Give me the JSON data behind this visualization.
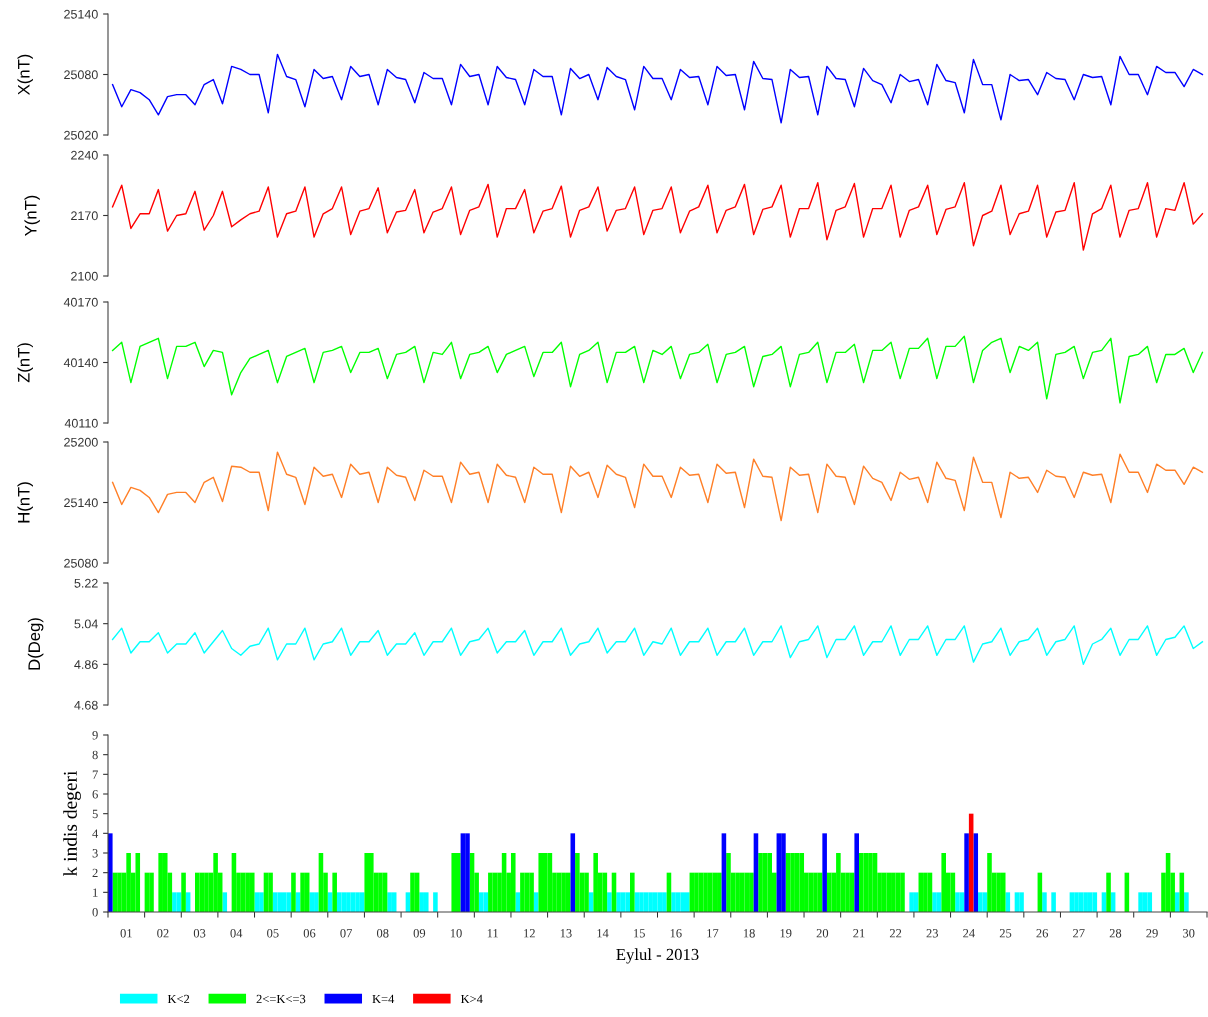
{
  "chart_data": [
    {
      "type": "line",
      "ylabel": "X(nT)",
      "tick_labels": "y",
      "ylim": [
        25020,
        25140
      ],
      "yticks": [
        25020,
        25080,
        25140
      ],
      "grid": false,
      "categories": [
        null,
        null,
        null,
        null,
        null,
        null,
        null,
        null,
        null,
        null,
        null,
        null,
        null,
        null,
        null,
        null,
        null,
        null,
        null,
        null,
        null,
        null,
        null,
        null,
        null,
        null,
        null,
        null,
        null,
        null,
        null,
        null,
        null,
        null,
        null,
        null,
        null,
        null,
        null,
        null,
        null,
        null,
        null,
        null,
        null,
        null,
        null,
        null,
        null,
        null,
        null,
        null,
        null,
        null,
        null,
        null,
        null,
        null,
        null,
        null,
        null,
        null,
        null,
        null,
        null,
        null,
        null,
        null,
        null,
        null,
        null,
        null,
        null,
        null,
        null,
        null,
        null,
        null,
        null,
        null,
        null,
        null,
        null,
        null,
        null,
        null,
        null,
        null,
        null,
        null,
        null,
        null,
        null,
        null,
        null,
        null,
        null,
        null,
        null,
        null,
        null,
        null,
        null,
        null,
        null,
        null,
        null,
        null,
        null,
        null,
        null,
        null,
        null,
        null,
        null,
        null,
        null,
        null,
        null,
        null
      ],
      "series": [
        {
          "color": "#0000ff",
          "values": [
            25070,
            25048,
            25065,
            25062,
            25055,
            25040,
            25058,
            25060,
            25060,
            25050,
            25070,
            25075,
            25051,
            25088,
            25085,
            25080,
            25080,
            25042,
            25100,
            25078,
            25075,
            25048,
            25085,
            25076,
            25078,
            25055,
            25088,
            25078,
            25080,
            25050,
            25085,
            25077,
            25075,
            25052,
            25082,
            25076,
            25076,
            25050,
            25090,
            25078,
            25080,
            25050,
            25088,
            25077,
            25075,
            25050,
            25085,
            25078,
            25078,
            25040,
            25086,
            25076,
            25080,
            25055,
            25087,
            25078,
            25075,
            25045,
            25088,
            25076,
            25076,
            25055,
            25085,
            25077,
            25078,
            25050,
            25088,
            25079,
            25080,
            25045,
            25093,
            25076,
            25075,
            25032,
            25085,
            25077,
            25078,
            25040,
            25088,
            25076,
            25075,
            25048,
            25086,
            25074,
            25070,
            25052,
            25080,
            25073,
            25075,
            25050,
            25090,
            25074,
            25072,
            25042,
            25095,
            25070,
            25070,
            25035,
            25080,
            25074,
            25075,
            25060,
            25082,
            25076,
            25075,
            25055,
            25080,
            25077,
            25078,
            25050,
            25098,
            25080,
            25080,
            25060,
            25088,
            25082,
            25082,
            25068,
            25085,
            25080
          ]
        }
      ]
    },
    {
      "type": "line",
      "ylabel": "Y(nT)",
      "tick_labels": "y",
      "ylim": [
        2100,
        2240
      ],
      "yticks": [
        2100,
        2170,
        2240
      ],
      "grid": false,
      "categories": [
        null,
        null,
        null,
        null,
        null,
        null,
        null,
        null,
        null,
        null,
        null,
        null,
        null,
        null,
        null,
        null,
        null,
        null,
        null,
        null,
        null,
        null,
        null,
        null,
        null,
        null,
        null,
        null,
        null,
        null,
        null,
        null,
        null,
        null,
        null,
        null,
        null,
        null,
        null,
        null,
        null,
        null,
        null,
        null,
        null,
        null,
        null,
        null,
        null,
        null,
        null,
        null,
        null,
        null,
        null,
        null,
        null,
        null,
        null,
        null,
        null,
        null,
        null,
        null,
        null,
        null,
        null,
        null,
        null,
        null,
        null,
        null,
        null,
        null,
        null,
        null,
        null,
        null,
        null,
        null,
        null,
        null,
        null,
        null,
        null,
        null,
        null,
        null,
        null,
        null,
        null,
        null,
        null,
        null,
        null,
        null,
        null,
        null,
        null,
        null,
        null,
        null,
        null,
        null,
        null,
        null,
        null,
        null,
        null,
        null,
        null,
        null,
        null,
        null,
        null,
        null,
        null,
        null,
        null,
        null
      ],
      "series": [
        {
          "color": "#ff0000",
          "values": [
            2180,
            2205,
            2155,
            2172,
            2172,
            2200,
            2152,
            2170,
            2172,
            2198,
            2153,
            2170,
            2198,
            2157,
            2165,
            2172,
            2175,
            2203,
            2145,
            2172,
            2175,
            2203,
            2145,
            2172,
            2178,
            2203,
            2148,
            2175,
            2178,
            2202,
            2150,
            2174,
            2176,
            2200,
            2150,
            2174,
            2178,
            2203,
            2148,
            2176,
            2180,
            2206,
            2145,
            2178,
            2178,
            2200,
            2150,
            2175,
            2178,
            2204,
            2145,
            2176,
            2180,
            2203,
            2152,
            2176,
            2178,
            2203,
            2148,
            2176,
            2178,
            2203,
            2150,
            2175,
            2180,
            2205,
            2150,
            2176,
            2180,
            2206,
            2148,
            2177,
            2180,
            2205,
            2145,
            2178,
            2178,
            2208,
            2142,
            2176,
            2180,
            2207,
            2145,
            2178,
            2178,
            2205,
            2145,
            2176,
            2180,
            2205,
            2148,
            2177,
            2180,
            2208,
            2135,
            2170,
            2175,
            2205,
            2148,
            2172,
            2175,
            2205,
            2145,
            2174,
            2176,
            2208,
            2130,
            2172,
            2178,
            2205,
            2145,
            2176,
            2178,
            2208,
            2145,
            2178,
            2176,
            2208,
            2160,
            2172
          ]
        }
      ]
    },
    {
      "type": "line",
      "ylabel": "Z(nT)",
      "tick_labels": "y",
      "ylim": [
        40110,
        40170
      ],
      "yticks": [
        40110,
        40140,
        40170
      ],
      "grid": false,
      "categories": [
        null,
        null,
        null,
        null,
        null,
        null,
        null,
        null,
        null,
        null,
        null,
        null,
        null,
        null,
        null,
        null,
        null,
        null,
        null,
        null,
        null,
        null,
        null,
        null,
        null,
        null,
        null,
        null,
        null,
        null,
        null,
        null,
        null,
        null,
        null,
        null,
        null,
        null,
        null,
        null,
        null,
        null,
        null,
        null,
        null,
        null,
        null,
        null,
        null,
        null,
        null,
        null,
        null,
        null,
        null,
        null,
        null,
        null,
        null,
        null,
        null,
        null,
        null,
        null,
        null,
        null,
        null,
        null,
        null,
        null,
        null,
        null,
        null,
        null,
        null,
        null,
        null,
        null,
        null,
        null,
        null,
        null,
        null,
        null,
        null,
        null,
        null,
        null,
        null,
        null,
        null,
        null,
        null,
        null,
        null,
        null,
        null,
        null,
        null,
        null,
        null,
        null,
        null,
        null,
        null,
        null,
        null,
        null,
        null,
        null,
        null,
        null,
        null,
        null,
        null,
        null,
        null,
        null,
        null,
        null
      ],
      "series": [
        {
          "color": "#00ff00",
          "values": [
            40146,
            40150,
            40130,
            40148,
            40150,
            40152,
            40132,
            40148,
            40148,
            40150,
            40138,
            40146,
            40145,
            40124,
            40135,
            40142,
            40144,
            40146,
            40130,
            40143,
            40145,
            40147,
            40130,
            40145,
            40146,
            40148,
            40135,
            40145,
            40145,
            40147,
            40132,
            40144,
            40145,
            40148,
            40130,
            40145,
            40144,
            40150,
            40132,
            40144,
            40145,
            40148,
            40135,
            40144,
            40146,
            40148,
            40133,
            40145,
            40145,
            40150,
            40128,
            40144,
            40146,
            40150,
            40130,
            40145,
            40145,
            40148,
            40130,
            40146,
            40144,
            40148,
            40132,
            40144,
            40145,
            40149,
            40130,
            40144,
            40145,
            40148,
            40128,
            40143,
            40144,
            40148,
            40128,
            40144,
            40145,
            40150,
            40130,
            40145,
            40145,
            40149,
            40130,
            40146,
            40146,
            40150,
            40132,
            40147,
            40147,
            40152,
            40132,
            40148,
            40148,
            40153,
            40130,
            40146,
            40150,
            40152,
            40135,
            40148,
            40146,
            40150,
            40122,
            40144,
            40145,
            40148,
            40132,
            40145,
            40146,
            40152,
            40120,
            40143,
            40144,
            40148,
            40130,
            40144,
            40144,
            40147,
            40135,
            40145
          ]
        }
      ]
    },
    {
      "type": "line",
      "ylabel": "H(nT)",
      "tick_labels": "y",
      "ylim": [
        25080,
        25200
      ],
      "yticks": [
        25080,
        25140,
        25200
      ],
      "grid": false,
      "categories": [
        null,
        null,
        null,
        null,
        null,
        null,
        null,
        null,
        null,
        null,
        null,
        null,
        null,
        null,
        null,
        null,
        null,
        null,
        null,
        null,
        null,
        null,
        null,
        null,
        null,
        null,
        null,
        null,
        null,
        null,
        null,
        null,
        null,
        null,
        null,
        null,
        null,
        null,
        null,
        null,
        null,
        null,
        null,
        null,
        null,
        null,
        null,
        null,
        null,
        null,
        null,
        null,
        null,
        null,
        null,
        null,
        null,
        null,
        null,
        null,
        null,
        null,
        null,
        null,
        null,
        null,
        null,
        null,
        null,
        null,
        null,
        null,
        null,
        null,
        null,
        null,
        null,
        null,
        null,
        null,
        null,
        null,
        null,
        null,
        null,
        null,
        null,
        null,
        null,
        null,
        null,
        null,
        null,
        null,
        null,
        null,
        null,
        null,
        null,
        null,
        null,
        null,
        null,
        null,
        null,
        null,
        null,
        null,
        null,
        null,
        null,
        null,
        null,
        null,
        null,
        null,
        null,
        null,
        null,
        null
      ],
      "series": [
        {
          "color": "#ff7f27",
          "values": [
            25160,
            25138,
            25155,
            25152,
            25145,
            25130,
            25148,
            25150,
            25150,
            25140,
            25160,
            25165,
            25141,
            25176,
            25175,
            25170,
            25170,
            25132,
            25190,
            25168,
            25165,
            25138,
            25175,
            25166,
            25168,
            25145,
            25178,
            25168,
            25170,
            25140,
            25175,
            25167,
            25165,
            25142,
            25172,
            25166,
            25166,
            25140,
            25180,
            25168,
            25170,
            25140,
            25178,
            25167,
            25165,
            25140,
            25175,
            25168,
            25168,
            25130,
            25176,
            25166,
            25170,
            25145,
            25177,
            25168,
            25165,
            25135,
            25178,
            25166,
            25166,
            25145,
            25175,
            25167,
            25168,
            25140,
            25178,
            25169,
            25170,
            25135,
            25183,
            25166,
            25165,
            25122,
            25175,
            25167,
            25168,
            25130,
            25178,
            25166,
            25165,
            25138,
            25176,
            25164,
            25160,
            25142,
            25170,
            25163,
            25165,
            25140,
            25180,
            25164,
            25162,
            25132,
            25185,
            25160,
            25160,
            25125,
            25170,
            25164,
            25165,
            25150,
            25172,
            25166,
            25165,
            25145,
            25170,
            25167,
            25168,
            25140,
            25188,
            25170,
            25170,
            25150,
            25178,
            25172,
            25172,
            25158,
            25175,
            25170
          ]
        }
      ]
    },
    {
      "type": "line",
      "ylabel": "D(Deg)",
      "tick_labels": "y",
      "ylim": [
        4.68,
        5.22
      ],
      "yticks": [
        4.68,
        4.86,
        5.04,
        5.22
      ],
      "grid": false,
      "categories": [
        null,
        null,
        null,
        null,
        null,
        null,
        null,
        null,
        null,
        null,
        null,
        null,
        null,
        null,
        null,
        null,
        null,
        null,
        null,
        null,
        null,
        null,
        null,
        null,
        null,
        null,
        null,
        null,
        null,
        null,
        null,
        null,
        null,
        null,
        null,
        null,
        null,
        null,
        null,
        null,
        null,
        null,
        null,
        null,
        null,
        null,
        null,
        null,
        null,
        null,
        null,
        null,
        null,
        null,
        null,
        null,
        null,
        null,
        null,
        null,
        null,
        null,
        null,
        null,
        null,
        null,
        null,
        null,
        null,
        null,
        null,
        null,
        null,
        null,
        null,
        null,
        null,
        null,
        null,
        null,
        null,
        null,
        null,
        null,
        null,
        null,
        null,
        null,
        null,
        null,
        null,
        null,
        null,
        null,
        null,
        null,
        null,
        null,
        null,
        null,
        null,
        null,
        null,
        null,
        null,
        null,
        null,
        null,
        null,
        null,
        null,
        null,
        null,
        null,
        null,
        null,
        null,
        null,
        null,
        null
      ],
      "series": [
        {
          "color": "#00ffff",
          "values": [
            4.97,
            5.02,
            4.91,
            4.96,
            4.96,
            5.0,
            4.91,
            4.95,
            4.95,
            5.0,
            4.91,
            4.96,
            5.01,
            4.93,
            4.9,
            4.94,
            4.95,
            5.02,
            4.88,
            4.95,
            4.95,
            5.02,
            4.88,
            4.95,
            4.96,
            5.02,
            4.9,
            4.96,
            4.96,
            5.01,
            4.9,
            4.95,
            4.95,
            5.0,
            4.9,
            4.96,
            4.96,
            5.02,
            4.9,
            4.96,
            4.97,
            5.02,
            4.91,
            4.96,
            4.96,
            5.01,
            4.9,
            4.96,
            4.96,
            5.02,
            4.9,
            4.95,
            4.96,
            5.02,
            4.91,
            4.96,
            4.96,
            5.02,
            4.9,
            4.96,
            4.95,
            5.02,
            4.9,
            4.96,
            4.96,
            5.02,
            4.9,
            4.96,
            4.96,
            5.02,
            4.9,
            4.96,
            4.96,
            5.03,
            4.89,
            4.96,
            4.97,
            5.03,
            4.89,
            4.97,
            4.97,
            5.03,
            4.9,
            4.96,
            4.96,
            5.03,
            4.9,
            4.97,
            4.97,
            5.03,
            4.9,
            4.97,
            4.97,
            5.03,
            4.87,
            4.95,
            4.96,
            5.02,
            4.9,
            4.96,
            4.97,
            5.02,
            4.9,
            4.96,
            4.97,
            5.03,
            4.86,
            4.95,
            4.97,
            5.02,
            4.9,
            4.97,
            4.97,
            5.03,
            4.9,
            4.97,
            4.98,
            5.03,
            4.93,
            4.96
          ]
        }
      ]
    },
    {
      "type": "bar",
      "xlabel": "Eylul - 2013",
      "ylabel": "k indis degeri",
      "xlim": [
        1,
        31
      ],
      "ylim": [
        0,
        9
      ],
      "yticks": [
        0,
        1,
        2,
        3,
        4,
        5,
        6,
        7,
        8,
        9
      ],
      "grid": false,
      "legend": "bottom",
      "xticks": [
        {
          "value": 1,
          "label": null
        },
        {
          "value": 1.5,
          "label": "01"
        },
        {
          "value": 2,
          "label": null
        },
        {
          "value": 2.5,
          "label": "02"
        },
        {
          "value": 3,
          "label": null
        },
        {
          "value": 3.5,
          "label": "03"
        },
        {
          "value": 4,
          "label": null
        },
        {
          "value": 4.5,
          "label": "04"
        },
        {
          "value": 5,
          "label": null
        },
        {
          "value": 5.5,
          "label": "05"
        },
        {
          "value": 6,
          "label": null
        },
        {
          "value": 6.5,
          "label": "06"
        },
        {
          "value": 7,
          "label": null
        },
        {
          "value": 7.5,
          "label": "07"
        },
        {
          "value": 8,
          "label": null
        },
        {
          "value": 8.5,
          "label": "08"
        },
        {
          "value": 9,
          "label": null
        },
        {
          "value": 9.5,
          "label": "09"
        },
        {
          "value": 10,
          "label": null
        },
        {
          "value": 10.5,
          "label": "10"
        },
        {
          "value": 11,
          "label": null
        },
        {
          "value": 11.5,
          "label": "11"
        },
        {
          "value": 12,
          "label": null
        },
        {
          "value": 12.5,
          "label": "12"
        },
        {
          "value": 13,
          "label": null
        },
        {
          "value": 13.5,
          "label": "13"
        },
        {
          "value": 14,
          "label": null
        },
        {
          "value": 14.5,
          "label": "14"
        },
        {
          "value": 15,
          "label": null
        },
        {
          "value": 15.5,
          "label": "15"
        },
        {
          "value": 16,
          "label": null
        },
        {
          "value": 16.5,
          "label": "16"
        },
        {
          "value": 17,
          "label": null
        },
        {
          "value": 17.5,
          "label": "17"
        },
        {
          "value": 18,
          "label": null
        },
        {
          "value": 18.5,
          "label": "18"
        },
        {
          "value": 19,
          "label": null
        },
        {
          "value": 19.5,
          "label": "19"
        },
        {
          "value": 20,
          "label": null
        },
        {
          "value": 20.5,
          "label": "20"
        },
        {
          "value": 21,
          "label": null
        },
        {
          "value": 21.5,
          "label": "21"
        },
        {
          "value": 22,
          "label": null
        },
        {
          "value": 22.5,
          "label": "22"
        },
        {
          "value": 23,
          "label": null
        },
        {
          "value": 23.5,
          "label": "23"
        },
        {
          "value": 24,
          "label": null
        },
        {
          "value": 24.5,
          "label": "24"
        },
        {
          "value": 25,
          "label": null
        },
        {
          "value": 25.5,
          "label": "25"
        },
        {
          "value": 26,
          "label": null
        },
        {
          "value": 26.5,
          "label": "26"
        },
        {
          "value": 27,
          "label": null
        },
        {
          "value": 27.5,
          "label": "27"
        },
        {
          "value": 28,
          "label": null
        },
        {
          "value": 28.5,
          "label": "28"
        },
        {
          "value": 29,
          "label": null
        },
        {
          "value": 29.5,
          "label": "29"
        },
        {
          "value": 30,
          "label": null
        },
        {
          "value": 30.5,
          "label": "30"
        },
        {
          "value": 31,
          "label": null
        }
      ],
      "series": [
        {
          "name": "K<2",
          "color": "#00ffff",
          "x": [
            1.875,
            2.25,
            2.75,
            2.875,
            3.125,
            3.25,
            4.125,
            4.25,
            5,
            5.125,
            5.5,
            5.625,
            5.75,
            5.875,
            6.125,
            6.5,
            6.625,
            7,
            7.25,
            7.375,
            7.5,
            7.625,
            7.75,
            7.875,
            8.625,
            8.75,
            8.875,
            9,
            9.125,
            9.5,
            9.625,
            9.75,
            9.875,
            10,
            10.125,
            10.25,
            11.125,
            11.25,
            12.125,
            12.625,
            14.125,
            14.625,
            14.875,
            15,
            15.125,
            15.375,
            15.5,
            15.625,
            15.75,
            15.875,
            16,
            16.125,
            16.375,
            16.5,
            16.625,
            16.75,
            22.75,
            22.875,
            23,
            23.5,
            23.625,
            24.125,
            24.25,
            24.75,
            24.875,
            25.5,
            25.625,
            25.75,
            25.875,
            26,
            26.125,
            26.25,
            26.5,
            26.625,
            26.75,
            26.875,
            27,
            27.125,
            27.25,
            27.375,
            27.5,
            27.625,
            27.75,
            27.875,
            28,
            28.125,
            28.375,
            28.5,
            28.625,
            28.875,
            29,
            29.125,
            29.25,
            29.375,
            29.5,
            29.625,
            30.125,
            30.375,
            30.5,
            30.625,
            30.75,
            30.875
          ],
          "values": [
            0,
            0,
            1,
            1,
            1,
            0,
            1,
            0,
            1,
            1,
            1,
            1,
            1,
            1,
            1,
            1,
            1,
            1,
            1,
            1,
            1,
            1,
            1,
            1,
            1,
            1,
            0,
            0,
            1,
            1,
            1,
            0,
            1,
            0,
            0,
            0,
            1,
            1,
            1,
            1,
            1,
            1,
            1,
            1,
            1,
            1,
            1,
            1,
            1,
            1,
            1,
            1,
            1,
            1,
            1,
            1,
            0,
            1,
            1,
            1,
            1,
            1,
            1,
            1,
            1,
            1,
            0,
            1,
            1,
            0,
            0,
            0,
            1,
            0,
            1,
            0,
            0,
            0,
            1,
            1,
            1,
            1,
            1,
            1,
            0,
            1,
            1,
            0,
            0,
            0,
            0,
            1,
            1,
            1,
            0,
            0,
            1,
            1,
            0,
            0,
            0,
            0
          ]
        },
        {
          "name": "2<=K<=3",
          "color": "#00ff00",
          "x": [
            1.125,
            1.25,
            1.375,
            1.5,
            1.625,
            1.75,
            2,
            2.125,
            2.375,
            2.5,
            2.625,
            3,
            3.375,
            3.5,
            3.625,
            3.75,
            3.875,
            4,
            4.375,
            4.5,
            4.625,
            4.75,
            4.875,
            5.25,
            5.375,
            6,
            6.25,
            6.375,
            6.75,
            6.875,
            7.125,
            8,
            8.125,
            8.25,
            8.375,
            8.5,
            9.25,
            9.375,
            10.375,
            10.5,
            10.875,
            11,
            11.375,
            11.5,
            11.625,
            11.75,
            11.875,
            12,
            12.25,
            12.375,
            12.5,
            12.75,
            12.875,
            13,
            13.125,
            13.25,
            13.375,
            13.5,
            13.75,
            13.875,
            14,
            14.25,
            14.375,
            14.5,
            14.75,
            15.25,
            16.25,
            16.875,
            17,
            17.125,
            17.25,
            17.375,
            17.5,
            17.625,
            17.875,
            18,
            18.125,
            18.25,
            18.375,
            18.5,
            18.75,
            18.875,
            19,
            19.125,
            19.5,
            19.625,
            19.75,
            19.875,
            20,
            20.125,
            20.25,
            20.375,
            20.625,
            20.75,
            20.875,
            21,
            21.125,
            21.25,
            21.5,
            21.625,
            21.75,
            21.875,
            22,
            22.125,
            22.25,
            22.375,
            22.5,
            22.625,
            23.125,
            23.25,
            23.375,
            23.75,
            23.875,
            24,
            25,
            25.125,
            25.25,
            25.375,
            26.375,
            28.25,
            28.75,
            29.75,
            29.875,
            30,
            30.25
          ],
          "values": [
            2,
            2,
            2,
            3,
            2,
            3,
            2,
            2,
            3,
            3,
            2,
            2,
            2,
            2,
            2,
            2,
            3,
            2,
            3,
            2,
            2,
            2,
            2,
            2,
            2,
            2,
            2,
            2,
            3,
            2,
            2,
            3,
            3,
            2,
            2,
            2,
            2,
            2,
            3,
            3,
            3,
            2,
            2,
            2,
            2,
            3,
            2,
            3,
            2,
            2,
            2,
            3,
            3,
            3,
            2,
            2,
            2,
            2,
            3,
            2,
            2,
            3,
            2,
            2,
            2,
            2,
            2,
            2,
            2,
            2,
            2,
            2,
            2,
            2,
            3,
            2,
            2,
            2,
            2,
            2,
            3,
            3,
            3,
            2,
            3,
            3,
            3,
            3,
            2,
            2,
            2,
            2,
            2,
            2,
            3,
            2,
            2,
            2,
            3,
            3,
            3,
            3,
            2,
            2,
            2,
            2,
            2,
            2,
            2,
            2,
            2,
            3,
            2,
            2,
            3,
            2,
            2,
            2,
            2,
            2,
            2,
            2,
            3,
            2,
            2
          ]
        },
        {
          "name": "K=4",
          "color": "#0000ff",
          "x": [
            1,
            10.625,
            10.75,
            13.625,
            17.75,
            18.625,
            19.25,
            19.375,
            20.5,
            21.375,
            24.375,
            24.625
          ],
          "values": [
            4,
            4,
            4,
            4,
            4,
            4,
            4,
            4,
            4,
            4,
            4,
            4
          ]
        },
        {
          "name": "K>4",
          "color": "#ff0000",
          "x": [
            24.5
          ],
          "values": [
            5
          ]
        }
      ]
    }
  ]
}
